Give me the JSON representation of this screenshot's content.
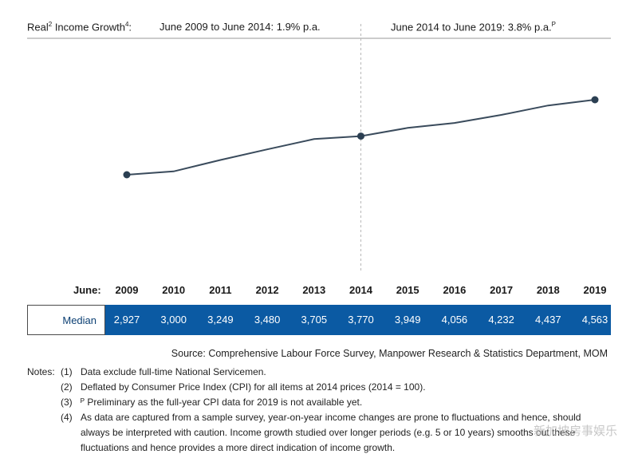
{
  "header": {
    "left_label": "Real",
    "left_label_sup": "2",
    "left_label_rest": " Income Growth",
    "left_label_sup2": "4",
    "left_label_colon": ":",
    "period1": "June 2009 to June 2014: 1.9% p.a.",
    "period2": "June 2014 to June 2019: 3.8% p.a.",
    "period2_sup": "P"
  },
  "axis": {
    "prefix": "June:"
  },
  "table": {
    "row_label": "Median"
  },
  "chart_data": {
    "type": "line",
    "x": [
      "2009",
      "2010",
      "2011",
      "2012",
      "2013",
      "2014",
      "2015",
      "2016",
      "2017",
      "2018",
      "2019"
    ],
    "series": [
      {
        "name": "Median",
        "values": [
          2927,
          3000,
          3249,
          3480,
          3705,
          3770,
          3949,
          4056,
          4232,
          4437,
          4563
        ]
      }
    ],
    "value_labels": [
      "2,927",
      "3,000",
      "3,249",
      "3,480",
      "3,705",
      "3,770",
      "3,949",
      "4,056",
      "4,232",
      "4,437",
      "4,563"
    ],
    "markers_at": [
      "2009",
      "2014",
      "2019"
    ],
    "divider_at": "2014"
  },
  "source": "Source: Comprehensive Labour Force Survey, Manpower Research & Statistics Department, MOM",
  "notes": {
    "lead": "Notes:",
    "items": [
      {
        "num": "(1)",
        "text": "Data exclude full-time National Servicemen."
      },
      {
        "num": "(2)",
        "text": "Deflated by Consumer Price Index (CPI) for all items at 2014 prices (2014 = 100)."
      },
      {
        "num": "(3)",
        "text": "ᴾ Preliminary as the full-year CPI data for 2019 is not available yet."
      },
      {
        "num": "(4)",
        "text": "As data are captured from a sample survey, year-on-year income changes are prone to fluctuations and hence, should always be interpreted with caution. Income growth studied over longer periods (e.g. 5 or 10 years) smooths out these fluctuations and hence provides a more direct indication of income growth."
      }
    ]
  },
  "watermark": "新加坡房事娱乐",
  "colors": {
    "line": "#3a4b5c",
    "marker": "#2b3f52",
    "table_bg": "#0b5aa3",
    "label_text": "#0b3f73"
  }
}
